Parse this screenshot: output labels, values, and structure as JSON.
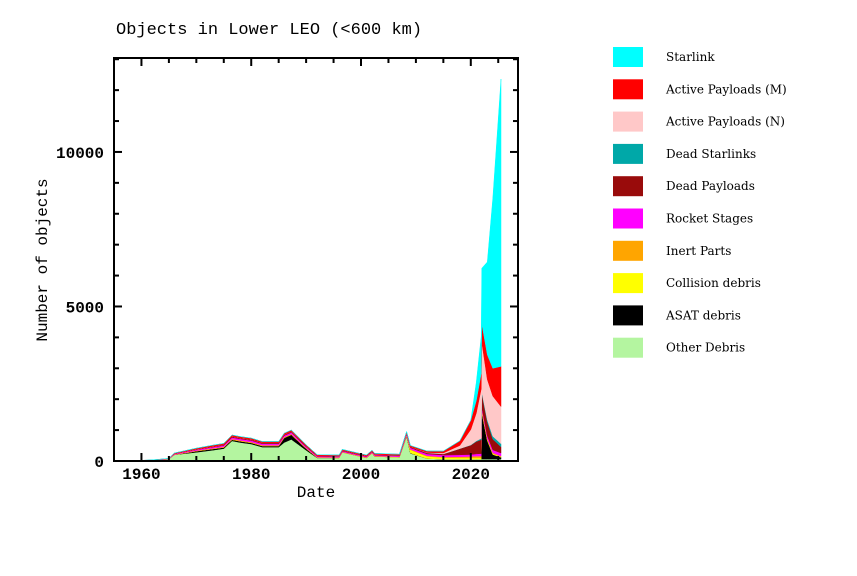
{
  "chart_data": {
    "type": "area",
    "stacked": true,
    "title": "Objects in Lower LEO (<600 km)",
    "xlabel": "Date",
    "ylabel": "Number of objects",
    "xlim": [
      1955,
      2028.6
    ],
    "ylim": [
      0,
      13040
    ],
    "xticks": [
      1960,
      1980,
      2000,
      2020
    ],
    "xtick_labels": [
      "1960",
      "1980",
      "2000",
      "2020"
    ],
    "yticks": [
      0,
      5000,
      10000
    ],
    "ytick_labels": [
      "0",
      "5000",
      "10000"
    ],
    "x_minor_step": 5,
    "y_minor_step": 1000,
    "grid": false,
    "legend_position": "right-outside",
    "x": [
      1957,
      1962,
      1965,
      1966,
      1970,
      1973,
      1975,
      1976.5,
      1978,
      1980,
      1982,
      1985,
      1986,
      1987.3,
      1990,
      1992,
      1996,
      1996.6,
      2001,
      2002,
      2002.5,
      2007,
      2008.3,
      2009,
      2012,
      2015,
      2018,
      2020,
      2021,
      2021.9,
      2022,
      2023,
      2024,
      2025.5
    ],
    "series": [
      {
        "name": "Other Debris",
        "color": "#b4f5a0",
        "values": [
          0,
          20,
          60,
          200,
          280,
          350,
          400,
          650,
          600,
          550,
          450,
          450,
          600,
          700,
          350,
          100,
          100,
          280,
          100,
          250,
          150,
          120,
          800,
          250,
          80,
          60,
          60,
          60,
          60,
          60,
          60,
          60,
          60,
          60
        ]
      },
      {
        "name": "ASAT debris",
        "color": "#000000",
        "values": [
          0,
          0,
          0,
          0,
          40,
          40,
          40,
          40,
          40,
          40,
          40,
          40,
          150,
          150,
          50,
          10,
          0,
          0,
          0,
          0,
          0,
          0,
          20,
          10,
          0,
          0,
          0,
          0,
          0,
          0,
          1500,
          600,
          150,
          60
        ]
      },
      {
        "name": "Collision debris",
        "color": "#ffff00",
        "values": [
          0,
          0,
          0,
          0,
          0,
          0,
          0,
          0,
          0,
          0,
          0,
          0,
          0,
          0,
          0,
          0,
          0,
          0,
          0,
          0,
          0,
          0,
          0,
          100,
          70,
          50,
          40,
          40,
          40,
          40,
          40,
          30,
          25,
          20
        ]
      },
      {
        "name": "Inert Parts",
        "color": "#ffa500",
        "values": [
          0,
          0,
          0,
          10,
          15,
          20,
          20,
          25,
          25,
          25,
          20,
          20,
          25,
          25,
          20,
          15,
          15,
          15,
          15,
          15,
          15,
          15,
          20,
          20,
          20,
          20,
          40,
          50,
          60,
          60,
          60,
          40,
          30,
          20
        ]
      },
      {
        "name": "Rocket Stages",
        "color": "#ff00ff",
        "values": [
          0,
          5,
          10,
          20,
          30,
          40,
          45,
          50,
          50,
          50,
          50,
          50,
          50,
          50,
          40,
          30,
          30,
          30,
          30,
          30,
          30,
          30,
          40,
          50,
          60,
          60,
          60,
          60,
          70,
          80,
          80,
          90,
          95,
          100
        ]
      },
      {
        "name": "Dead Payloads",
        "color": "#990b0b",
        "values": [
          0,
          5,
          5,
          10,
          15,
          20,
          25,
          30,
          30,
          30,
          30,
          30,
          30,
          30,
          25,
          20,
          20,
          20,
          20,
          20,
          20,
          25,
          30,
          30,
          35,
          40,
          200,
          300,
          400,
          450,
          450,
          450,
          350,
          200
        ]
      },
      {
        "name": "Dead Starlinks",
        "color": "#00a8a8",
        "values": [
          0,
          0,
          0,
          0,
          0,
          0,
          0,
          0,
          0,
          0,
          0,
          0,
          0,
          0,
          0,
          0,
          0,
          0,
          0,
          0,
          0,
          0,
          0,
          0,
          0,
          0,
          0,
          10,
          20,
          40,
          50,
          70,
          90,
          100
        ]
      },
      {
        "name": "Active Payloads (N)",
        "color": "#ffc8c8",
        "values": [
          0,
          0,
          0,
          0,
          0,
          0,
          0,
          0,
          0,
          0,
          0,
          0,
          0,
          0,
          0,
          0,
          0,
          0,
          0,
          0,
          0,
          0,
          0,
          0,
          10,
          30,
          100,
          500,
          900,
          1600,
          1600,
          1300,
          1300,
          1200
        ]
      },
      {
        "name": "Active Payloads (M)",
        "color": "#ff0000",
        "values": [
          0,
          5,
          10,
          20,
          35,
          40,
          40,
          45,
          45,
          45,
          40,
          40,
          45,
          45,
          40,
          30,
          30,
          30,
          30,
          30,
          30,
          30,
          40,
          40,
          50,
          60,
          150,
          300,
          400,
          500,
          600,
          800,
          900,
          1300
        ]
      },
      {
        "name": "Starlink",
        "color": "#00ffff",
        "values": [
          0,
          0,
          0,
          0,
          0,
          0,
          0,
          0,
          0,
          0,
          0,
          0,
          0,
          0,
          0,
          0,
          0,
          0,
          0,
          0,
          0,
          0,
          0,
          0,
          0,
          0,
          0,
          0,
          600,
          1200,
          1800,
          3000,
          5500,
          9300
        ]
      }
    ]
  }
}
